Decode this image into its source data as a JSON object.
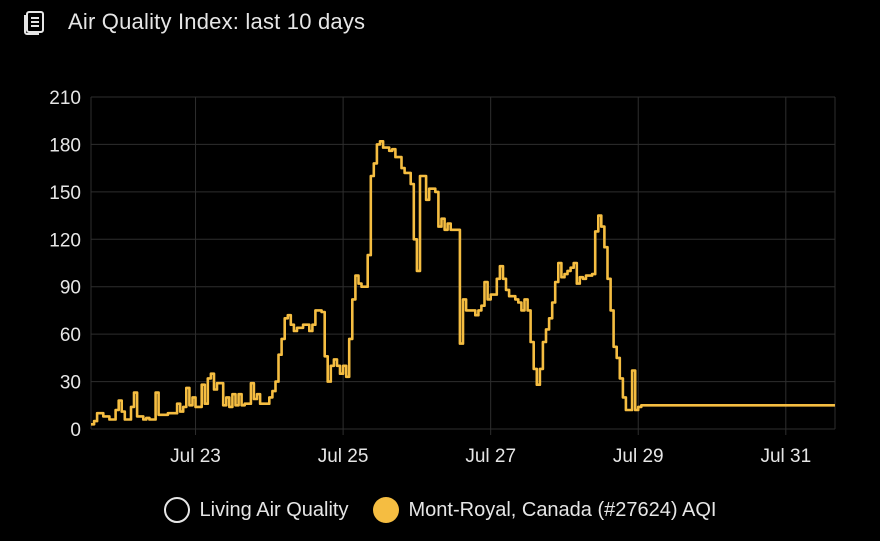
{
  "header": {
    "title": "Air Quality Index: last 10 days",
    "icon": "document-list-icon"
  },
  "colors": {
    "background": "#000000",
    "grid": "#2e2e2e",
    "axis_text": "#e6e6e6",
    "series_line": "#f5bd41"
  },
  "chart_data": {
    "type": "line",
    "title": "Air Quality Index: last 10 days",
    "xlabel": "",
    "ylabel": "",
    "x_unit": "date",
    "xlim": [
      "2024-07-21T14:00",
      "2024-07-31T16:00"
    ],
    "ylim": [
      0,
      210
    ],
    "yticks": [
      0,
      30,
      60,
      90,
      120,
      150,
      180,
      210
    ],
    "xticks": [
      {
        "value": "2024-07-23T00:00",
        "label": "Jul 23"
      },
      {
        "value": "2024-07-25T00:00",
        "label": "Jul 25"
      },
      {
        "value": "2024-07-27T00:00",
        "label": "Jul 27"
      },
      {
        "value": "2024-07-29T00:00",
        "label": "Jul 29"
      },
      {
        "value": "2024-07-31T00:00",
        "label": "Jul 31"
      }
    ],
    "grid": true,
    "step": true,
    "legend_position": "bottom",
    "legend": [
      {
        "label": "Living Air Quality",
        "style": "outline"
      },
      {
        "label": "Mont-Royal, Canada (#27624) AQI",
        "style": "filled"
      }
    ],
    "series": [
      {
        "name": "Mont-Royal, Canada (#27624) AQI",
        "color": "#f5bd41",
        "points": [
          [
            "2024-07-21T14:00",
            3
          ],
          [
            "2024-07-21T15:00",
            5
          ],
          [
            "2024-07-21T16:00",
            10
          ],
          [
            "2024-07-21T18:00",
            8
          ],
          [
            "2024-07-21T20:00",
            6
          ],
          [
            "2024-07-21T22:00",
            12
          ],
          [
            "2024-07-21T23:00",
            18
          ],
          [
            "2024-07-22T00:00",
            11
          ],
          [
            "2024-07-22T01:00",
            6
          ],
          [
            "2024-07-22T03:00",
            14
          ],
          [
            "2024-07-22T04:00",
            23
          ],
          [
            "2024-07-22T05:00",
            8
          ],
          [
            "2024-07-22T07:00",
            6
          ],
          [
            "2024-07-22T08:00",
            7
          ],
          [
            "2024-07-22T09:00",
            6
          ],
          [
            "2024-07-22T10:00",
            6
          ],
          [
            "2024-07-22T11:00",
            23
          ],
          [
            "2024-07-22T12:00",
            9
          ],
          [
            "2024-07-22T13:00",
            9
          ],
          [
            "2024-07-22T14:00",
            9
          ],
          [
            "2024-07-22T15:00",
            10
          ],
          [
            "2024-07-22T16:00",
            10
          ],
          [
            "2024-07-22T18:00",
            16
          ],
          [
            "2024-07-22T19:00",
            11
          ],
          [
            "2024-07-22T20:00",
            14
          ],
          [
            "2024-07-22T21:00",
            26
          ],
          [
            "2024-07-22T22:00",
            15
          ],
          [
            "2024-07-22T23:00",
            20
          ],
          [
            "2024-07-23T00:00",
            14
          ],
          [
            "2024-07-23T02:00",
            28
          ],
          [
            "2024-07-23T03:00",
            16
          ],
          [
            "2024-07-23T04:00",
            32
          ],
          [
            "2024-07-23T05:00",
            35
          ],
          [
            "2024-07-23T06:00",
            25
          ],
          [
            "2024-07-23T07:00",
            29
          ],
          [
            "2024-07-23T09:00",
            15
          ],
          [
            "2024-07-23T10:00",
            20
          ],
          [
            "2024-07-23T11:00",
            14
          ],
          [
            "2024-07-23T12:00",
            22
          ],
          [
            "2024-07-23T13:00",
            15
          ],
          [
            "2024-07-23T14:00",
            22
          ],
          [
            "2024-07-23T15:00",
            15
          ],
          [
            "2024-07-23T16:00",
            16
          ],
          [
            "2024-07-23T17:00",
            16
          ],
          [
            "2024-07-23T18:00",
            29
          ],
          [
            "2024-07-23T19:00",
            19
          ],
          [
            "2024-07-23T20:00",
            22
          ],
          [
            "2024-07-23T21:00",
            16
          ],
          [
            "2024-07-23T22:00",
            16
          ],
          [
            "2024-07-24T00:00",
            20
          ],
          [
            "2024-07-24T01:00",
            24
          ],
          [
            "2024-07-24T02:00",
            30
          ],
          [
            "2024-07-24T03:00",
            47
          ],
          [
            "2024-07-24T04:00",
            57
          ],
          [
            "2024-07-24T05:00",
            70
          ],
          [
            "2024-07-24T06:00",
            72
          ],
          [
            "2024-07-24T07:00",
            66
          ],
          [
            "2024-07-24T08:00",
            62
          ],
          [
            "2024-07-24T09:00",
            64
          ],
          [
            "2024-07-24T11:00",
            66
          ],
          [
            "2024-07-24T13:00",
            62
          ],
          [
            "2024-07-24T14:00",
            66
          ],
          [
            "2024-07-24T15:00",
            75
          ],
          [
            "2024-07-24T17:00",
            74
          ],
          [
            "2024-07-24T18:00",
            46
          ],
          [
            "2024-07-24T19:00",
            30
          ],
          [
            "2024-07-24T20:00",
            40
          ],
          [
            "2024-07-24T21:00",
            44
          ],
          [
            "2024-07-24T22:00",
            40
          ],
          [
            "2024-07-24T23:00",
            35
          ],
          [
            "2024-07-25T00:00",
            40
          ],
          [
            "2024-07-25T01:00",
            33
          ],
          [
            "2024-07-25T02:00",
            57
          ],
          [
            "2024-07-25T03:00",
            82
          ],
          [
            "2024-07-25T04:00",
            97
          ],
          [
            "2024-07-25T05:00",
            92
          ],
          [
            "2024-07-25T06:00",
            90
          ],
          [
            "2024-07-25T08:00",
            110
          ],
          [
            "2024-07-25T09:00",
            160
          ],
          [
            "2024-07-25T10:00",
            168
          ],
          [
            "2024-07-25T11:00",
            180
          ],
          [
            "2024-07-25T12:00",
            182
          ],
          [
            "2024-07-25T13:00",
            178
          ],
          [
            "2024-07-25T15:00",
            176
          ],
          [
            "2024-07-25T16:00",
            177
          ],
          [
            "2024-07-25T17:00",
            172
          ],
          [
            "2024-07-25T19:00",
            165
          ],
          [
            "2024-07-25T20:00",
            162
          ],
          [
            "2024-07-25T22:00",
            155
          ],
          [
            "2024-07-25T23:00",
            120
          ],
          [
            "2024-07-26T00:00",
            100
          ],
          [
            "2024-07-26T01:00",
            160
          ],
          [
            "2024-07-26T03:00",
            145
          ],
          [
            "2024-07-26T04:00",
            152
          ],
          [
            "2024-07-26T06:00",
            150
          ],
          [
            "2024-07-26T07:00",
            128
          ],
          [
            "2024-07-26T08:00",
            133
          ],
          [
            "2024-07-26T09:00",
            126
          ],
          [
            "2024-07-26T10:00",
            130
          ],
          [
            "2024-07-26T11:00",
            126
          ],
          [
            "2024-07-26T14:00",
            54
          ],
          [
            "2024-07-26T15:00",
            82
          ],
          [
            "2024-07-26T16:00",
            75
          ],
          [
            "2024-07-26T19:00",
            72
          ],
          [
            "2024-07-26T20:00",
            75
          ],
          [
            "2024-07-26T21:00",
            78
          ],
          [
            "2024-07-26T22:00",
            93
          ],
          [
            "2024-07-26T23:00",
            82
          ],
          [
            "2024-07-27T00:00",
            85
          ],
          [
            "2024-07-27T02:00",
            95
          ],
          [
            "2024-07-27T03:00",
            103
          ],
          [
            "2024-07-27T04:00",
            95
          ],
          [
            "2024-07-27T05:00",
            88
          ],
          [
            "2024-07-27T06:00",
            84
          ],
          [
            "2024-07-27T08:00",
            82
          ],
          [
            "2024-07-27T09:00",
            80
          ],
          [
            "2024-07-27T10:00",
            75
          ],
          [
            "2024-07-27T11:00",
            82
          ],
          [
            "2024-07-27T12:00",
            75
          ],
          [
            "2024-07-27T13:00",
            55
          ],
          [
            "2024-07-27T14:00",
            38
          ],
          [
            "2024-07-27T15:00",
            28
          ],
          [
            "2024-07-27T16:00",
            38
          ],
          [
            "2024-07-27T17:00",
            55
          ],
          [
            "2024-07-27T18:00",
            63
          ],
          [
            "2024-07-27T19:00",
            70
          ],
          [
            "2024-07-27T20:00",
            80
          ],
          [
            "2024-07-27T21:00",
            93
          ],
          [
            "2024-07-27T22:00",
            105
          ],
          [
            "2024-07-27T23:00",
            96
          ],
          [
            "2024-07-28T00:00",
            98
          ],
          [
            "2024-07-28T01:00",
            100
          ],
          [
            "2024-07-28T02:00",
            102
          ],
          [
            "2024-07-28T03:00",
            105
          ],
          [
            "2024-07-28T04:00",
            92
          ],
          [
            "2024-07-28T05:00",
            96
          ],
          [
            "2024-07-28T06:00",
            95
          ],
          [
            "2024-07-28T07:00",
            97
          ],
          [
            "2024-07-28T09:00",
            98
          ],
          [
            "2024-07-28T10:00",
            125
          ],
          [
            "2024-07-28T11:00",
            135
          ],
          [
            "2024-07-28T12:00",
            128
          ],
          [
            "2024-07-28T13:00",
            115
          ],
          [
            "2024-07-28T14:00",
            95
          ],
          [
            "2024-07-28T15:00",
            75
          ],
          [
            "2024-07-28T16:00",
            52
          ],
          [
            "2024-07-28T17:00",
            45
          ],
          [
            "2024-07-28T18:00",
            32
          ],
          [
            "2024-07-28T19:00",
            20
          ],
          [
            "2024-07-28T20:00",
            12
          ],
          [
            "2024-07-28T22:00",
            37
          ],
          [
            "2024-07-28T23:00",
            12
          ],
          [
            "2024-07-29T00:00",
            14
          ],
          [
            "2024-07-29T01:00",
            15
          ]
        ]
      }
    ]
  },
  "legend": {
    "items": [
      {
        "label": "Living Air Quality"
      },
      {
        "label": "Mont-Royal, Canada (#27624) AQI"
      }
    ]
  }
}
